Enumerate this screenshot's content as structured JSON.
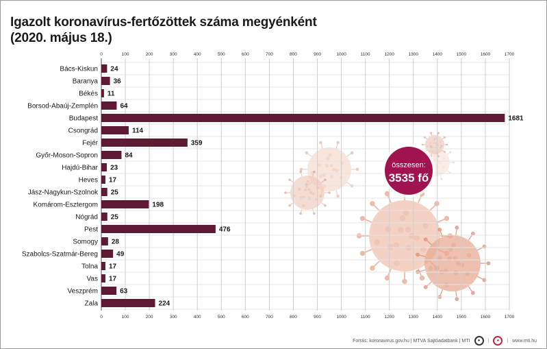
{
  "chart_data": {
    "type": "bar",
    "orientation": "horizontal",
    "title": "Igazolt koronavírus-fertőzöttek száma megyénként",
    "subtitle": "(2020. május 18.)",
    "categories": [
      "Bács-Kiskun",
      "Baranya",
      "Békés",
      "Borsod-Abaúj-Zemplén",
      "Budapest",
      "Csongrád",
      "Fejér",
      "Győr-Moson-Sopron",
      "Hajdú-Bihar",
      "Heves",
      "Jász-Nagykun-Szolnok",
      "Komárom-Esztergom",
      "Nógrád",
      "Pest",
      "Somogy",
      "Szabolcs-Szatmár-Bereg",
      "Tolna",
      "Vas",
      "Veszprém",
      "Zala"
    ],
    "values": [
      24,
      36,
      11,
      64,
      1681,
      114,
      359,
      84,
      23,
      17,
      25,
      198,
      25,
      476,
      28,
      49,
      17,
      17,
      63,
      224
    ],
    "xlim": [
      0,
      1700
    ],
    "ticks": [
      0,
      100,
      200,
      300,
      400,
      500,
      600,
      700,
      800,
      900,
      1000,
      1100,
      1200,
      1300,
      1400,
      1500,
      1600,
      1700
    ],
    "grid": true,
    "bar_color": "#5e1a35",
    "total_label": "összesen:",
    "total_value": "3535 fő",
    "total_color": "#a0134f"
  },
  "footer": {
    "source": "Forrás: koronavirus.gov.hu | MTVA Sajtóadatbank | MTI",
    "website": "www.mti.hu",
    "logos": [
      "MTVA",
      "MTI"
    ]
  }
}
